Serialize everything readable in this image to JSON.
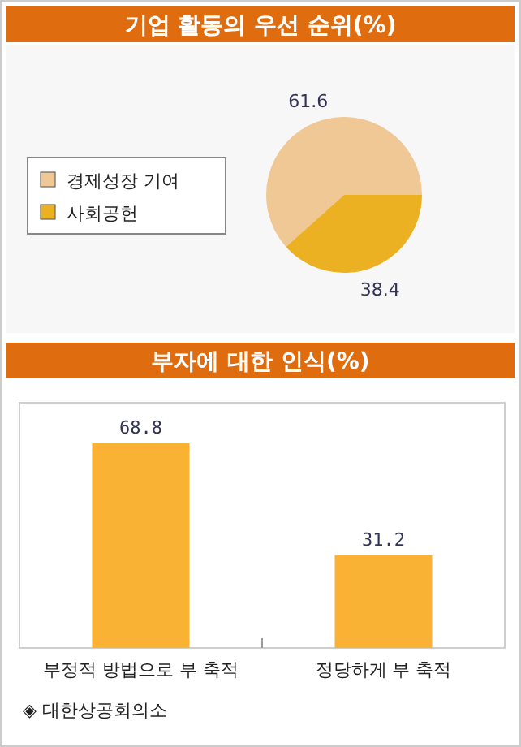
{
  "chart_data": [
    {
      "type": "pie",
      "title": "기업 활동의 우선 순위(%)",
      "categories": [
        "경제성장 기여",
        "사회공헌"
      ],
      "values": [
        61.6,
        38.4
      ],
      "colors": [
        "#f0c896",
        "#ebb122"
      ],
      "data_labels": true,
      "legend": "left"
    },
    {
      "type": "bar",
      "title": "부자에 대한 인식(%)",
      "categories": [
        "부정적 방법으로 부 축적",
        "정당하게 부 축적"
      ],
      "values": [
        68.8,
        31.2
      ],
      "color": "#f9b233",
      "data_labels": true,
      "annotations": [
        "◈ 대한상공회의소"
      ]
    }
  ]
}
